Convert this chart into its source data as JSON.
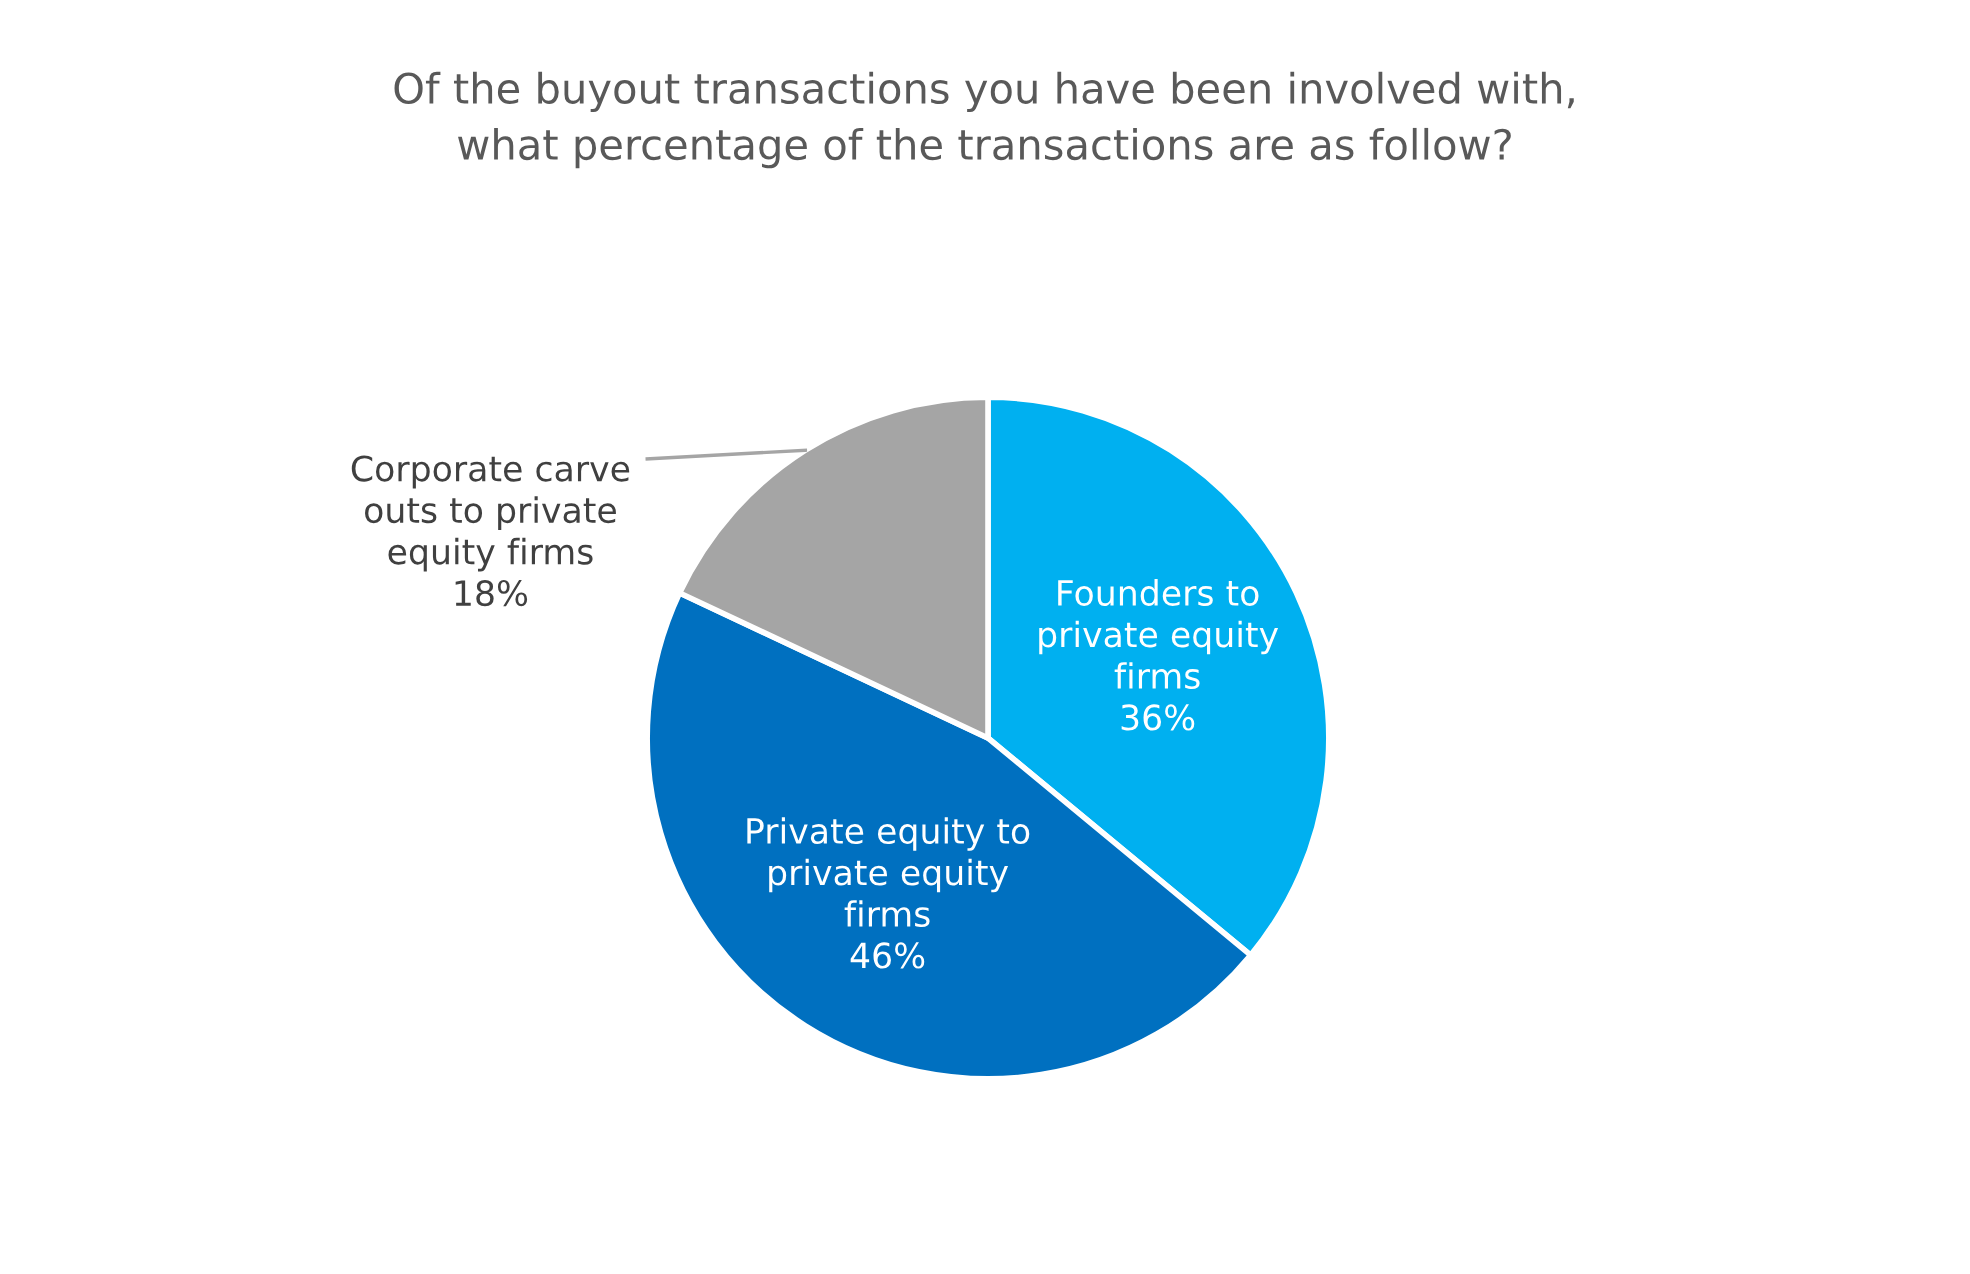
{
  "chart_data": {
    "type": "pie",
    "title": "Of the buyout transactions you have been involved with,\nwhat percentage of the transactions are as follow?",
    "categories": [
      "Founders to\nprivate equity\nfirms",
      "Private equity to\nprivate equity\nfirms",
      "Corporate carve\nouts to private\nequity firms"
    ],
    "values": [
      36,
      46,
      18
    ],
    "colors": [
      "#00b0f0",
      "#0070c0",
      "#a5a5a5"
    ],
    "value_labels": [
      "36%",
      "46%",
      "18%"
    ]
  }
}
